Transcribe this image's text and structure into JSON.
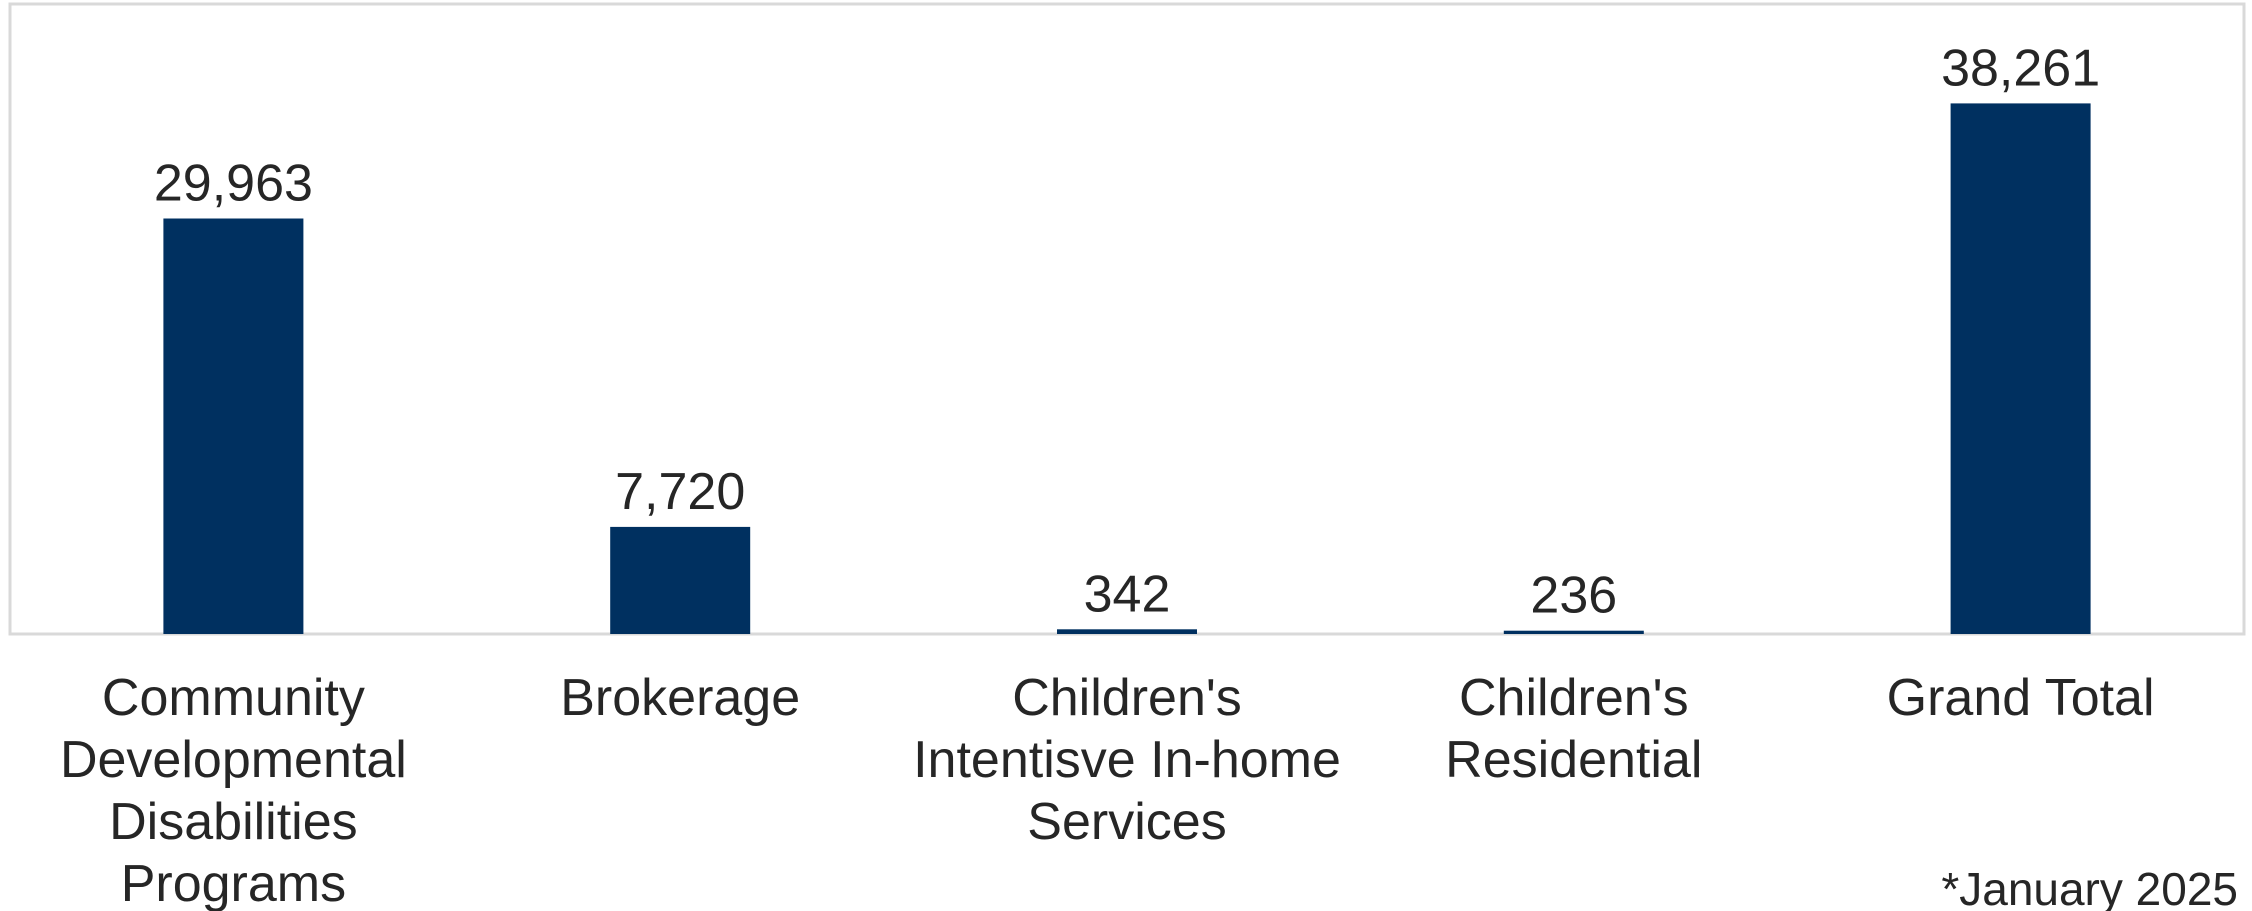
{
  "chart_data": {
    "type": "bar",
    "categories": [
      "Community Developmental Disabilities Programs",
      "Brokerage",
      "Children's Intentisve In-home Services",
      "Children's Residential",
      "Grand Total"
    ],
    "category_lines": [
      [
        "Community",
        "Developmental",
        "Disabilities",
        "Programs"
      ],
      [
        "Brokerage"
      ],
      [
        "Children's",
        "Intentisve In-home",
        "Services"
      ],
      [
        "Children's",
        "Residential"
      ],
      [
        "Grand Total"
      ]
    ],
    "values": [
      29963,
      7720,
      342,
      236,
      38261
    ],
    "data_labels": [
      "29,963",
      "7,720",
      "342",
      "236",
      "38,261"
    ],
    "ylim": [
      0,
      45000
    ],
    "grid": false,
    "legend": "none",
    "bar_color": "#003060",
    "frame_color": "#d9d9d9",
    "footnote": "*January 2025"
  }
}
